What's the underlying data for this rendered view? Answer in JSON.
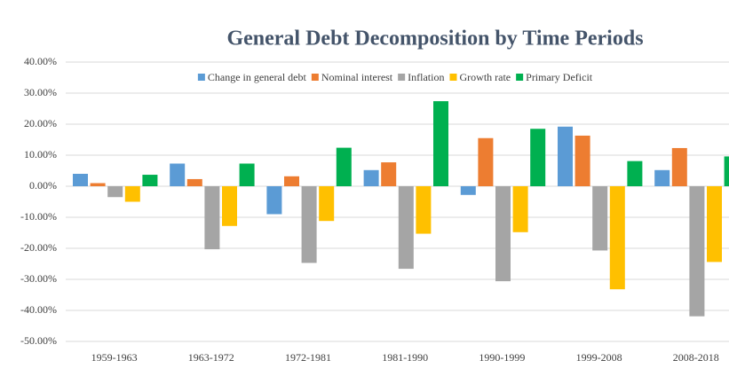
{
  "chart_data": {
    "type": "bar",
    "title": "General Debt Decomposition by Time Periods",
    "categories": [
      "1959-1963",
      "1963-1972",
      "1972-1981",
      "1981-1990",
      "1990-1999",
      "1999-2008",
      "2008-2018"
    ],
    "series": [
      {
        "name": "Change in general debt",
        "color": "#5b9bd5",
        "values": [
          4,
          7.3,
          -9,
          5.2,
          -2.8,
          19.2,
          5.2
        ]
      },
      {
        "name": "Nominal interest",
        "color": "#ed7d31",
        "values": [
          1,
          2.3,
          3.2,
          7.7,
          15.5,
          16.3,
          12.3
        ]
      },
      {
        "name": "Inflation",
        "color": "#a5a5a5",
        "values": [
          -3.5,
          -20.3,
          -24.7,
          -26.6,
          -30.6,
          -20.7,
          -41.9
        ]
      },
      {
        "name": "Growth rate",
        "color": "#ffc000",
        "values": [
          -5,
          -12.8,
          -11.2,
          -15.3,
          -14.8,
          -33.2,
          -24.4
        ]
      },
      {
        "name": "Primary Deficit",
        "color": "#00b050",
        "values": [
          3.7,
          7.3,
          12.4,
          27.4,
          18.5,
          8.1,
          9.6
        ]
      }
    ],
    "ylim": [
      -50,
      40
    ],
    "yticks": [
      {
        "value": -50,
        "label": "-50.00%"
      },
      {
        "value": -40,
        "label": "-40.00%"
      },
      {
        "value": -30,
        "label": "-30.00%"
      },
      {
        "value": -20,
        "label": "-20.00%"
      },
      {
        "value": -10,
        "label": "-10.00%"
      },
      {
        "value": 0,
        "label": "0.00%"
      },
      {
        "value": 10,
        "label": "10.00%"
      },
      {
        "value": 20,
        "label": "20.00%"
      },
      {
        "value": 30,
        "label": "30.00%"
      },
      {
        "value": 40,
        "label": "40.00%"
      }
    ],
    "grid": true,
    "legend": "top"
  }
}
